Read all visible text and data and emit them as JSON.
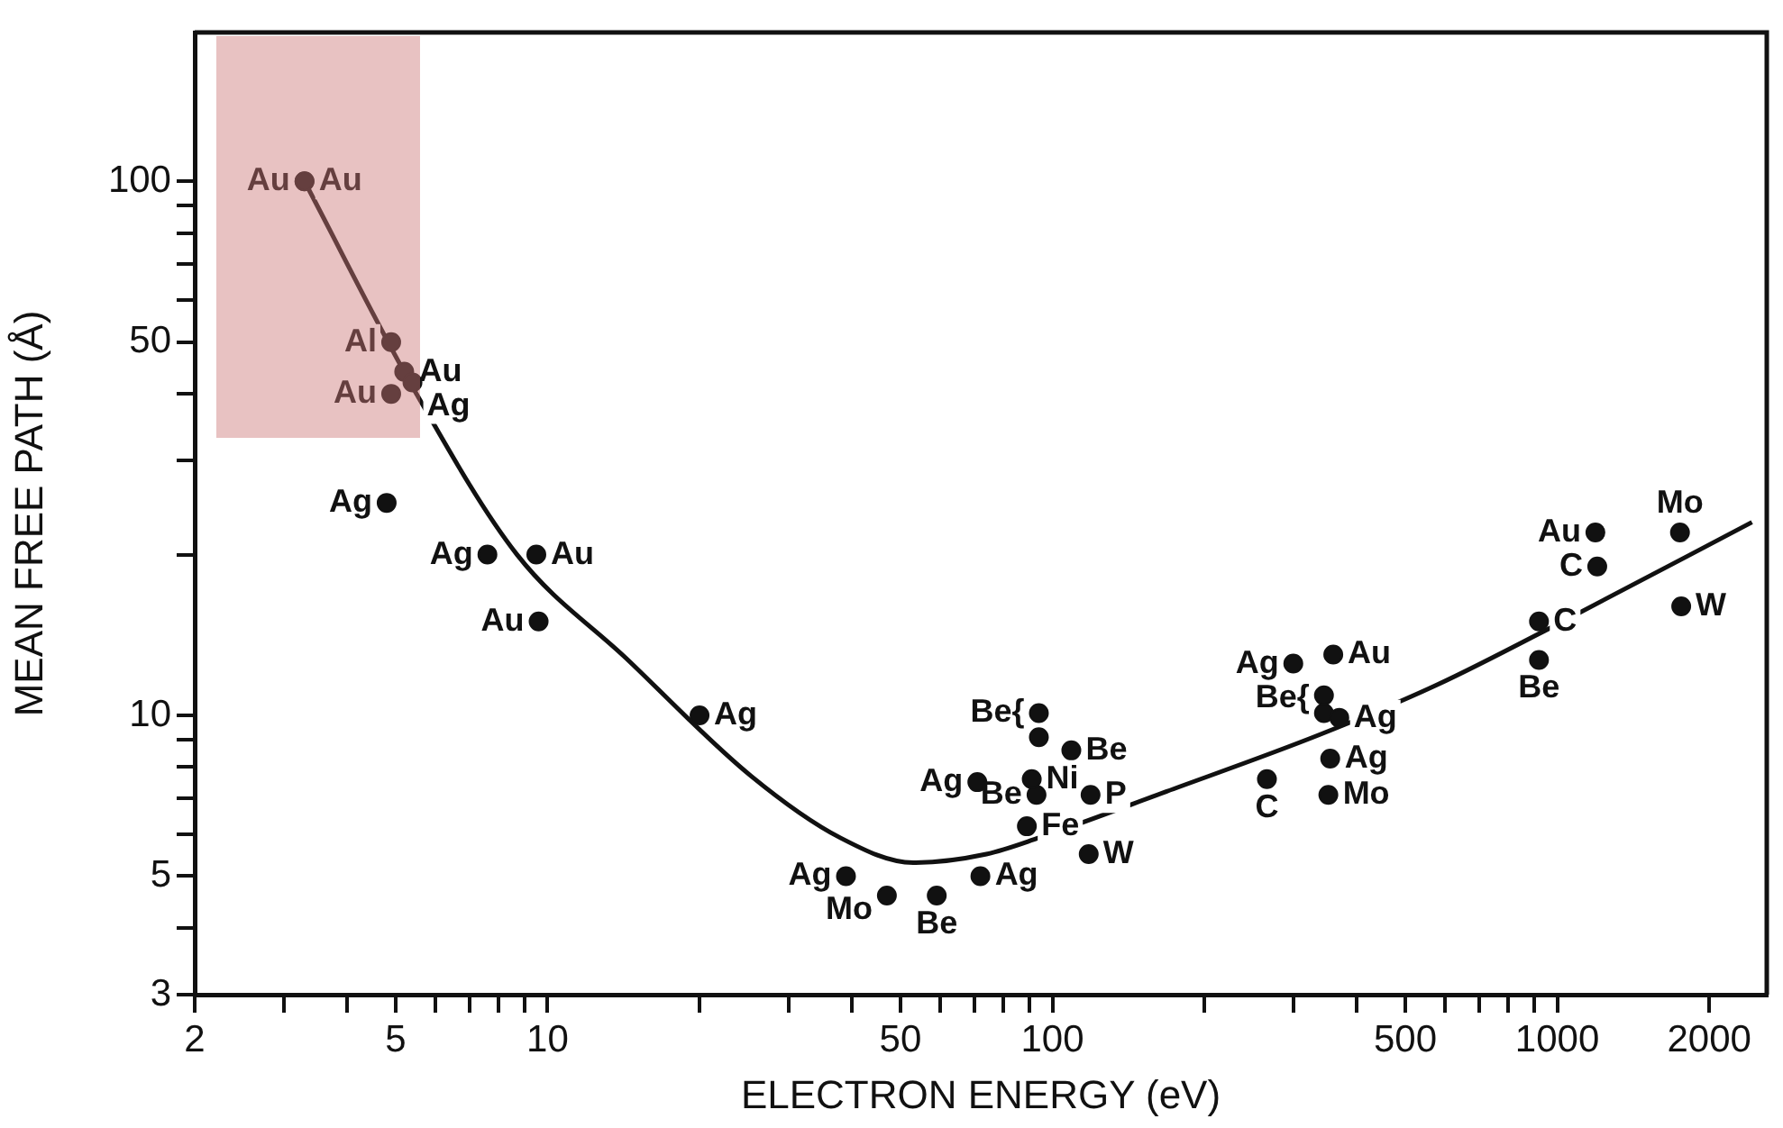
{
  "chart_data": {
    "type": "scatter",
    "xlabel": "ELECTRON ENERGY (eV)",
    "ylabel": "MEAN FREE PATH (Å)",
    "log": "xy",
    "grid": false,
    "legend": false,
    "marker": "circle",
    "xlim": [
      2,
      2600
    ],
    "ylim": [
      3,
      190
    ],
    "xticks": [
      2,
      {
        "value": 3,
        "label": null
      },
      {
        "value": 4,
        "label": null
      },
      5,
      {
        "value": 6,
        "label": null
      },
      {
        "value": 7,
        "label": null
      },
      {
        "value": 8,
        "label": null
      },
      {
        "value": 9,
        "label": null
      },
      10,
      {
        "value": 20,
        "label": null
      },
      {
        "value": 30,
        "label": null
      },
      {
        "value": 40,
        "label": null
      },
      50,
      {
        "value": 60,
        "label": null
      },
      {
        "value": 70,
        "label": null
      },
      {
        "value": 80,
        "label": null
      },
      {
        "value": 90,
        "label": null
      },
      100,
      {
        "value": 200,
        "label": null
      },
      {
        "value": 300,
        "label": null
      },
      {
        "value": 400,
        "label": null
      },
      500,
      {
        "value": 600,
        "label": null
      },
      {
        "value": 700,
        "label": null
      },
      {
        "value": 800,
        "label": null
      },
      {
        "value": 900,
        "label": null
      },
      1000,
      2000
    ],
    "yticks": [
      3,
      {
        "value": 4,
        "label": null
      },
      5,
      {
        "value": 6,
        "label": null
      },
      {
        "value": 7,
        "label": null
      },
      {
        "value": 8,
        "label": null
      },
      {
        "value": 9,
        "label": null
      },
      10,
      {
        "value": 20,
        "label": null
      },
      {
        "value": 30,
        "label": null
      },
      {
        "value": 40,
        "label": null
      },
      50,
      {
        "value": 60,
        "label": null
      },
      {
        "value": 70,
        "label": null
      },
      {
        "value": 80,
        "label": null
      },
      {
        "value": 90,
        "label": null
      },
      100
    ],
    "series": [
      {
        "color": "#111111",
        "x": [
          3.3,
          5.2,
          5.4,
          9.5,
          20,
          72,
          91,
          89,
          109,
          119,
          118,
          360,
          370,
          355,
          352,
          920,
          1760
        ],
        "values": [
          100,
          44,
          42,
          20,
          10,
          5,
          7.6,
          6.2,
          8.6,
          7.1,
          5.5,
          13,
          9.9,
          8.3,
          7.1,
          15,
          16
        ],
        "value_labels": [
          "Au",
          "Au",
          "Ag",
          "Au",
          "Ag",
          "Ag",
          "Ni",
          "Fe",
          "Be",
          "P",
          "W",
          "Au",
          "Ag",
          "Ag",
          "Mo",
          "C",
          "W"
        ]
      },
      {
        "color": "#111111",
        "x": [
          3.3,
          4.9,
          4.9,
          4.8,
          7.6,
          9.6,
          39,
          47,
          71,
          94,
          94,
          93,
          300,
          345,
          345,
          1190,
          1200
        ],
        "values": [
          100,
          50,
          40,
          25,
          20,
          15,
          5,
          4.6,
          7.5,
          10.1,
          9.1,
          7.1,
          12.5,
          10.9,
          10.1,
          22,
          19
        ],
        "value_labels": [
          "Au",
          "Al",
          "Au",
          "Ag",
          "Ag",
          "Au",
          "Ag",
          "Mo",
          "Ag",
          "Be{",
          null,
          "Be",
          "Ag",
          "Be{",
          null,
          "Au",
          "C"
        ]
      },
      {
        "color": "#111111",
        "x": [
          59,
          266,
          920
        ],
        "values": [
          4.6,
          7.6,
          12.7
        ],
        "value_labels": [
          "Be",
          "C",
          "Be"
        ]
      },
      {
        "color": "#111111",
        "x": [
          1750
        ],
        "values": [
          22
        ],
        "value_labels": [
          "Mo"
        ]
      },
      {
        "type": "line",
        "color": "#111111",
        "marker": "none",
        "x": [
          3.3,
          5.5,
          8.7,
          14.3,
          25.3,
          38,
          53,
          74,
          94,
          168,
          338,
          577,
          1026,
          2430
        ],
        "values": [
          100,
          40,
          20,
          12.8,
          7.7,
          5.9,
          5.3,
          5.5,
          5.9,
          7.2,
          9.2,
          11.4,
          15,
          23
        ]
      }
    ]
  }
}
